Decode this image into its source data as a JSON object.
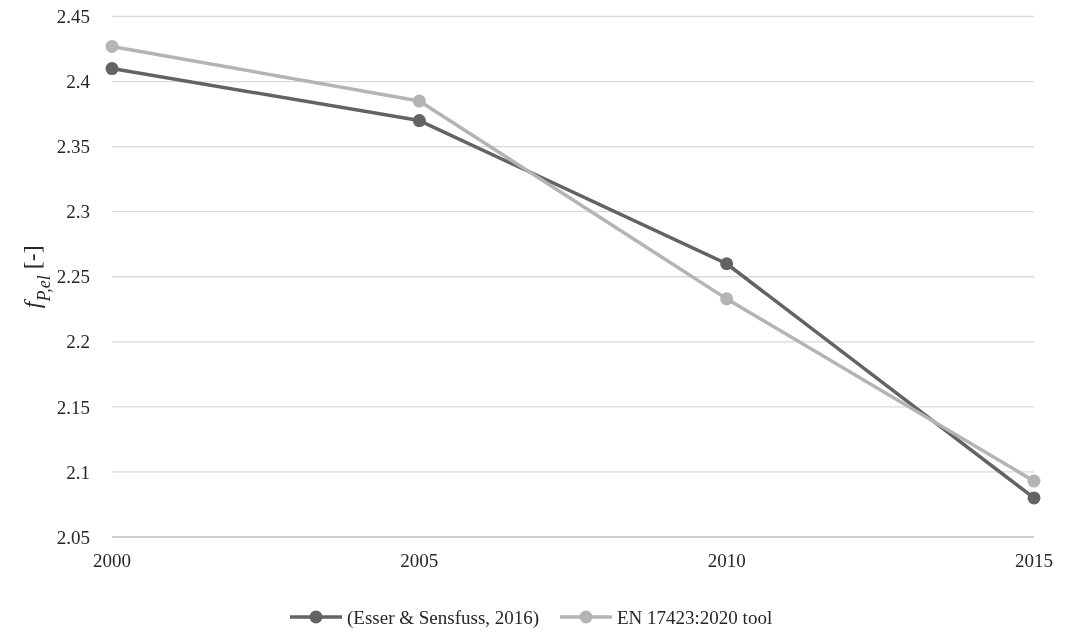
{
  "chart_data": {
    "type": "line",
    "ylabel": "f$_{P,el}$ [-]",
    "categories": [
      "2000",
      "2005",
      "2010",
      "2015"
    ],
    "series": [
      {
        "name": "(Esser & Sensfuss, 2016)",
        "color": "#636363",
        "values": [
          2.41,
          2.37,
          2.26,
          2.08
        ]
      },
      {
        "name": "EN 17423:2020 tool",
        "color": "#b4b4b4",
        "values": [
          2.427,
          2.385,
          2.233,
          2.093
        ]
      }
    ],
    "ylim": [
      2.05,
      2.45
    ],
    "yticks": [
      2.05,
      2.1,
      2.15,
      2.2,
      2.25,
      2.3,
      2.35,
      2.4,
      2.45
    ],
    "grid": "y",
    "legend": "bottom",
    "marker": "circle",
    "line_style": "solid"
  }
}
